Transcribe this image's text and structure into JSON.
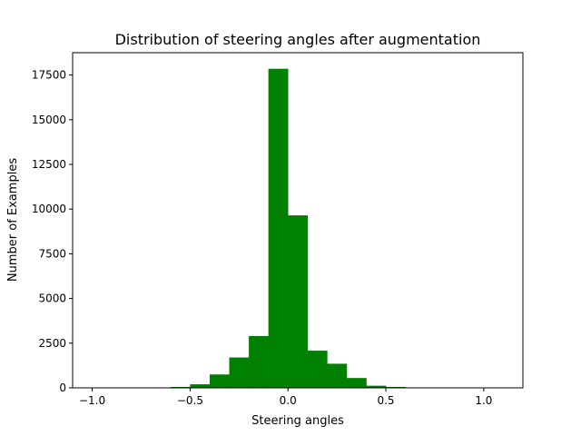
{
  "chart_data": {
    "type": "bar",
    "title": "Distribution of steering angles after augmentation",
    "xlabel": "Steering angles",
    "ylabel": "Number of Examples",
    "xlim": [
      -1.1,
      1.2
    ],
    "ylim": [
      0,
      18750
    ],
    "xticks": [
      -1.0,
      -0.5,
      0.0,
      0.5,
      1.0
    ],
    "xtick_labels": [
      "−1.0",
      "−0.5",
      "0.0",
      "0.5",
      "1.0"
    ],
    "yticks": [
      0,
      2500,
      5000,
      7500,
      10000,
      12500,
      15000,
      17500
    ],
    "ytick_labels": [
      "0",
      "2500",
      "5000",
      "7500",
      "10000",
      "12500",
      "15000",
      "17500"
    ],
    "bin_edges": [
      -0.6,
      -0.5,
      -0.4,
      -0.3,
      -0.2,
      -0.1,
      0.0,
      0.1,
      0.2,
      0.3,
      0.4,
      0.5,
      0.6,
      0.7
    ],
    "values": [
      50,
      200,
      750,
      1700,
      2900,
      17850,
      9650,
      2080,
      1350,
      550,
      120,
      50,
      0
    ],
    "bar_color": "#008000",
    "grid": false
  }
}
